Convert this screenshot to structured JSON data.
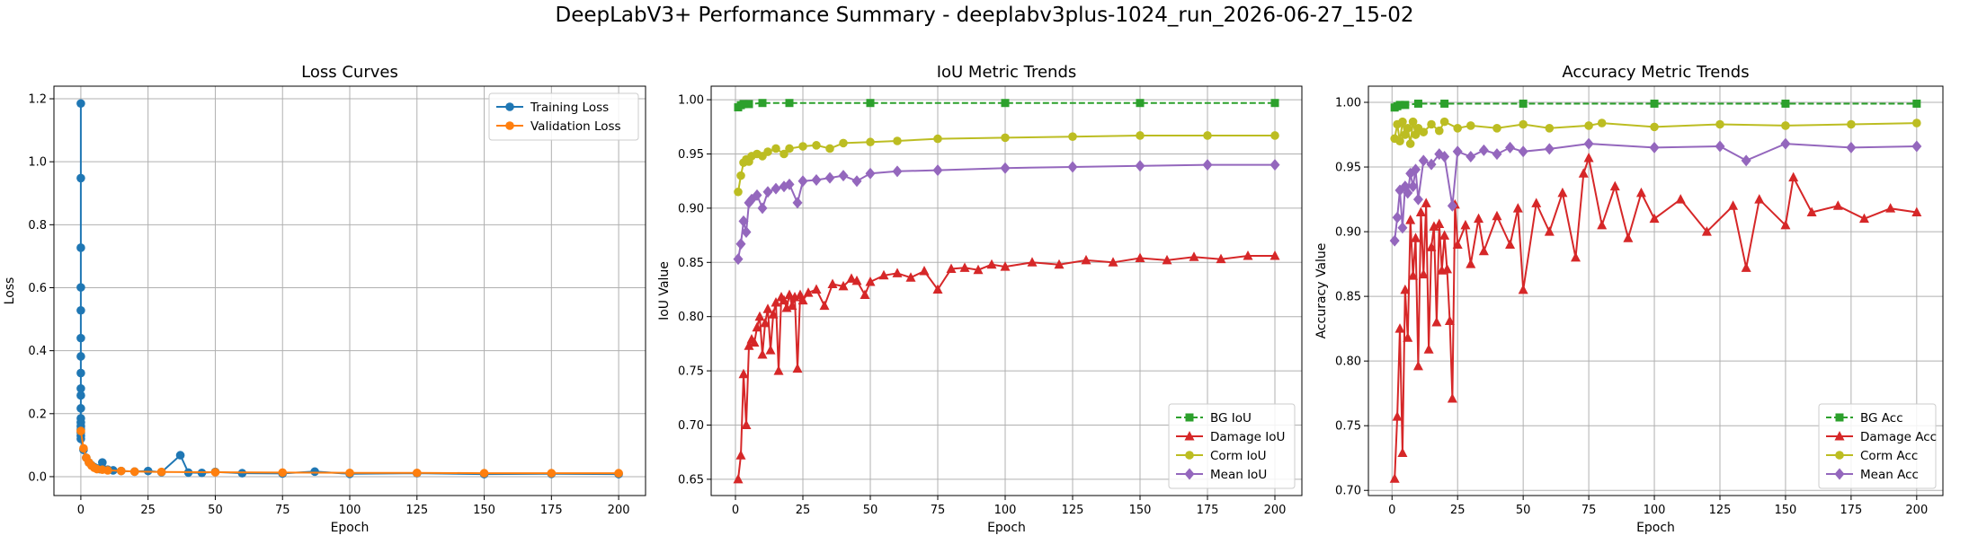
{
  "figure": {
    "suptitle": "DeepLabV3+ Performance Summary - deeplabv3plus-1024_run_2026-06-27_15-02"
  },
  "colors": {
    "blue": "#1f77b4",
    "orange": "#ff7f0e",
    "green": "#2ca02c",
    "red": "#d62728",
    "olive": "#bcbd22",
    "purple": "#9467bd",
    "grid": "#b0b0b0"
  },
  "chart_data": [
    {
      "type": "line",
      "title": "Loss Curves",
      "xlabel": "Epoch",
      "ylabel": "Loss",
      "xlim": [
        -10,
        210
      ],
      "ylim": [
        -0.06,
        1.24
      ],
      "xticks": [
        0,
        25,
        50,
        75,
        100,
        125,
        150,
        175,
        200
      ],
      "xtick_labels": [
        "0",
        "25",
        "50",
        "75",
        "100",
        "125",
        "150",
        "175",
        "200"
      ],
      "yticks": [
        0.0,
        0.2,
        0.4,
        0.6,
        0.8,
        1.0,
        1.2
      ],
      "ytick_labels": [
        "0.0",
        "0.2",
        "0.4",
        "0.6",
        "0.8",
        "1.0",
        "1.2"
      ],
      "grid": true,
      "legend_position": "top-right",
      "series": [
        {
          "name": "Training Loss",
          "color": "#1f77b4",
          "marker": "circle",
          "x": [
            0,
            0,
            0,
            0,
            0,
            0,
            0,
            0,
            0,
            0,
            0,
            0,
            0,
            0,
            0,
            0,
            0,
            0,
            1,
            2,
            3,
            4,
            5,
            6,
            7,
            8,
            10,
            12,
            15,
            20,
            25,
            30,
            37,
            40,
            45,
            50,
            60,
            75,
            87,
            100,
            125,
            150,
            175,
            200
          ],
          "y": [
            1.185,
            0.948,
            0.727,
            0.601,
            0.528,
            0.44,
            0.382,
            0.329,
            0.28,
            0.258,
            0.217,
            0.185,
            0.172,
            0.16,
            0.15,
            0.14,
            0.13,
            0.12,
            0.085,
            0.06,
            0.045,
            0.036,
            0.03,
            0.026,
            0.024,
            0.045,
            0.022,
            0.02,
            0.018,
            0.016,
            0.018,
            0.014,
            0.068,
            0.013,
            0.012,
            0.015,
            0.011,
            0.01,
            0.016,
            0.009,
            0.011,
            0.008,
            0.009,
            0.008
          ]
        },
        {
          "name": "Validation Loss",
          "color": "#ff7f0e",
          "marker": "circle",
          "x": [
            0,
            1,
            2,
            3,
            4,
            5,
            6,
            8,
            10,
            15,
            20,
            30,
            50,
            75,
            100,
            125,
            150,
            175,
            200
          ],
          "y": [
            0.145,
            0.09,
            0.06,
            0.045,
            0.035,
            0.028,
            0.024,
            0.022,
            0.02,
            0.018,
            0.016,
            0.015,
            0.014,
            0.013,
            0.012,
            0.012,
            0.011,
            0.011,
            0.011
          ]
        }
      ]
    },
    {
      "type": "line",
      "title": "IoU Metric Trends",
      "xlabel": "Epoch",
      "ylabel": "IoU Value",
      "xlim": [
        -9,
        210
      ],
      "ylim": [
        0.635,
        1.0125
      ],
      "xticks": [
        0,
        25,
        50,
        75,
        100,
        125,
        150,
        175,
        200
      ],
      "xtick_labels": [
        "0",
        "25",
        "50",
        "75",
        "100",
        "125",
        "150",
        "175",
        "200"
      ],
      "yticks": [
        0.65,
        0.7,
        0.75,
        0.8,
        0.85,
        0.9,
        0.95,
        1.0
      ],
      "ytick_labels": [
        "0.65",
        "0.70",
        "0.75",
        "0.80",
        "0.85",
        "0.90",
        "0.95",
        "1.00"
      ],
      "grid": true,
      "legend_position": "bottom-right",
      "series": [
        {
          "name": "BG IoU",
          "color": "#2ca02c",
          "marker": "square",
          "linestyle": "dashed",
          "x": [
            1,
            2,
            3,
            5,
            10,
            20,
            50,
            100,
            150,
            200
          ],
          "y": [
            0.993,
            0.995,
            0.996,
            0.996,
            0.997,
            0.997,
            0.997,
            0.997,
            0.997,
            0.997
          ]
        },
        {
          "name": "Damage IoU",
          "color": "#d62728",
          "marker": "triangle",
          "x": [
            1,
            2,
            3,
            4,
            5,
            6,
            7,
            8,
            9,
            10,
            11,
            12,
            13,
            14,
            15,
            16,
            17,
            18,
            19,
            20,
            21,
            22,
            23,
            24,
            25,
            27,
            30,
            33,
            36,
            40,
            43,
            45,
            48,
            50,
            55,
            60,
            65,
            70,
            75,
            80,
            85,
            90,
            95,
            100,
            110,
            120,
            130,
            140,
            150,
            160,
            170,
            180,
            190,
            200
          ],
          "y": [
            0.65,
            0.672,
            0.747,
            0.7,
            0.773,
            0.779,
            0.776,
            0.79,
            0.8,
            0.765,
            0.794,
            0.807,
            0.769,
            0.802,
            0.813,
            0.75,
            0.818,
            0.815,
            0.808,
            0.82,
            0.81,
            0.818,
            0.752,
            0.82,
            0.815,
            0.822,
            0.825,
            0.81,
            0.83,
            0.828,
            0.835,
            0.833,
            0.82,
            0.832,
            0.838,
            0.84,
            0.836,
            0.842,
            0.825,
            0.844,
            0.845,
            0.843,
            0.848,
            0.846,
            0.85,
            0.848,
            0.852,
            0.85,
            0.854,
            0.852,
            0.855,
            0.853,
            0.856,
            0.856
          ]
        },
        {
          "name": "Corm IoU",
          "color": "#bcbd22",
          "marker": "circle",
          "x": [
            1,
            2,
            3,
            4,
            5,
            6,
            8,
            10,
            12,
            15,
            18,
            20,
            25,
            30,
            35,
            40,
            50,
            60,
            75,
            100,
            125,
            150,
            175,
            200
          ],
          "y": [
            0.915,
            0.93,
            0.942,
            0.945,
            0.943,
            0.948,
            0.95,
            0.948,
            0.952,
            0.955,
            0.95,
            0.955,
            0.957,
            0.958,
            0.955,
            0.96,
            0.961,
            0.962,
            0.964,
            0.965,
            0.966,
            0.967,
            0.967,
            0.967
          ]
        },
        {
          "name": "Mean IoU",
          "color": "#9467bd",
          "marker": "diamond",
          "x": [
            1,
            2,
            3,
            4,
            5,
            6,
            8,
            10,
            12,
            15,
            18,
            20,
            23,
            25,
            30,
            35,
            40,
            45,
            50,
            60,
            75,
            100,
            125,
            150,
            175,
            200
          ],
          "y": [
            0.853,
            0.867,
            0.888,
            0.878,
            0.905,
            0.908,
            0.912,
            0.9,
            0.915,
            0.918,
            0.92,
            0.922,
            0.905,
            0.925,
            0.926,
            0.928,
            0.93,
            0.925,
            0.932,
            0.934,
            0.935,
            0.937,
            0.938,
            0.939,
            0.94,
            0.94
          ]
        }
      ]
    },
    {
      "type": "line",
      "title": "Accuracy Metric Trends",
      "xlabel": "Epoch",
      "ylabel": "Accuracy Value",
      "xlim": [
        -9,
        210
      ],
      "ylim": [
        0.696,
        1.0125
      ],
      "xticks": [
        0,
        25,
        50,
        75,
        100,
        125,
        150,
        175,
        200
      ],
      "xtick_labels": [
        "0",
        "25",
        "50",
        "75",
        "100",
        "125",
        "150",
        "175",
        "200"
      ],
      "yticks": [
        0.7,
        0.75,
        0.8,
        0.85,
        0.9,
        0.95,
        1.0
      ],
      "ytick_labels": [
        "0.70",
        "0.75",
        "0.80",
        "0.85",
        "0.90",
        "0.95",
        "1.00"
      ],
      "grid": true,
      "legend_position": "bottom-right",
      "series": [
        {
          "name": "BG Acc",
          "color": "#2ca02c",
          "marker": "square",
          "linestyle": "dashed",
          "x": [
            1,
            2,
            3,
            5,
            10,
            20,
            50,
            100,
            150,
            200
          ],
          "y": [
            0.996,
            0.997,
            0.998,
            0.998,
            0.999,
            0.999,
            0.999,
            0.999,
            0.999,
            0.999
          ]
        },
        {
          "name": "Damage Acc",
          "color": "#d62728",
          "marker": "triangle",
          "x": [
            1,
            2,
            3,
            4,
            5,
            6,
            7,
            8,
            9,
            10,
            11,
            12,
            13,
            14,
            15,
            16,
            17,
            18,
            19,
            20,
            21,
            22,
            23,
            24,
            25,
            28,
            30,
            33,
            35,
            40,
            45,
            48,
            50,
            55,
            60,
            65,
            70,
            73,
            75,
            80,
            85,
            90,
            95,
            100,
            110,
            120,
            130,
            135,
            140,
            150,
            153,
            160,
            170,
            180,
            190,
            200
          ],
          "y": [
            0.709,
            0.757,
            0.825,
            0.729,
            0.855,
            0.818,
            0.909,
            0.866,
            0.895,
            0.796,
            0.915,
            0.867,
            0.922,
            0.809,
            0.888,
            0.904,
            0.83,
            0.906,
            0.87,
            0.897,
            0.871,
            0.831,
            0.771,
            0.921,
            0.89,
            0.905,
            0.875,
            0.91,
            0.885,
            0.912,
            0.89,
            0.918,
            0.855,
            0.922,
            0.9,
            0.93,
            0.88,
            0.945,
            0.957,
            0.905,
            0.935,
            0.895,
            0.93,
            0.91,
            0.925,
            0.9,
            0.92,
            0.872,
            0.925,
            0.905,
            0.942,
            0.915,
            0.92,
            0.91,
            0.918,
            0.915
          ]
        },
        {
          "name": "Corm Acc",
          "color": "#bcbd22",
          "marker": "circle",
          "x": [
            1,
            2,
            3,
            4,
            5,
            6,
            7,
            8,
            9,
            10,
            12,
            15,
            18,
            20,
            25,
            30,
            40,
            50,
            60,
            75,
            80,
            100,
            125,
            150,
            175,
            200
          ],
          "y": [
            0.972,
            0.983,
            0.97,
            0.985,
            0.975,
            0.98,
            0.968,
            0.985,
            0.975,
            0.98,
            0.977,
            0.983,
            0.978,
            0.985,
            0.98,
            0.982,
            0.98,
            0.983,
            0.98,
            0.982,
            0.984,
            0.981,
            0.983,
            0.982,
            0.983,
            0.984
          ]
        },
        {
          "name": "Mean Acc",
          "color": "#9467bd",
          "marker": "diamond",
          "x": [
            1,
            2,
            3,
            4,
            5,
            6,
            7,
            8,
            9,
            10,
            12,
            15,
            18,
            20,
            23,
            25,
            30,
            35,
            40,
            45,
            50,
            60,
            75,
            100,
            125,
            135,
            150,
            175,
            200
          ],
          "y": [
            0.893,
            0.911,
            0.932,
            0.903,
            0.935,
            0.93,
            0.945,
            0.935,
            0.948,
            0.925,
            0.955,
            0.952,
            0.96,
            0.958,
            0.92,
            0.962,
            0.958,
            0.963,
            0.96,
            0.965,
            0.962,
            0.964,
            0.968,
            0.965,
            0.966,
            0.955,
            0.968,
            0.965,
            0.966
          ]
        }
      ]
    }
  ]
}
